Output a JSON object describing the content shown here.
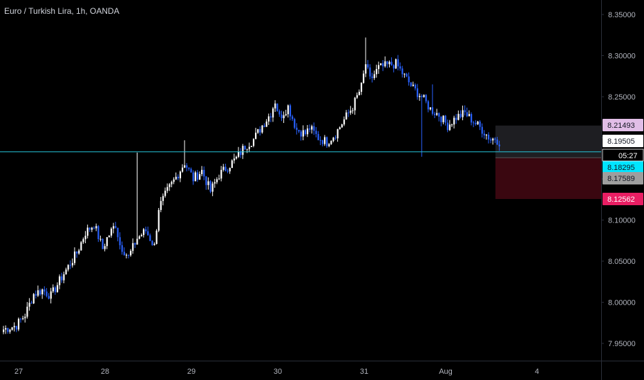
{
  "header": {
    "title": "Euro / Turkish Lira, 1h, OANDA"
  },
  "colors": {
    "background": "#000000",
    "up_candle": "#ffffff",
    "down_candle": "#2962ff",
    "price_line": "#26c6da",
    "stop_zone": "#3a0710",
    "target_zone": "#1e1e22",
    "axis_text": "#b2b5be",
    "border": "#2a2e39"
  },
  "chart_data": {
    "type": "candlestick",
    "title": "Euro / Turkish Lira, 1h, OANDA",
    "ylim": [
      7.93,
      8.365
    ],
    "y_ticks": [
      "8.35000",
      "8.30000",
      "8.25000",
      "8.20000",
      "8.15000",
      "8.10000",
      "8.05000",
      "8.00000",
      "7.95000"
    ],
    "x_ticks": [
      "27",
      "28",
      "29",
      "30",
      "31",
      "Aug",
      "4"
    ],
    "grid": false,
    "current_price": "8.19505",
    "countdown": "05:27",
    "horizontal_line": "8.18295",
    "price_labels": [
      {
        "value": "8.21493",
        "role": "target"
      },
      {
        "value": "8.19505",
        "role": "last"
      },
      {
        "value": "8.18295",
        "role": "line"
      },
      {
        "value": "8.17589",
        "role": "entry"
      },
      {
        "value": "8.12562",
        "role": "stop"
      }
    ],
    "position": {
      "target": 8.21493,
      "entry": 8.17589,
      "stop": 8.12562
    },
    "close_path": [
      [
        0,
        7.967
      ],
      [
        6,
        7.972
      ],
      [
        10,
        7.985
      ],
      [
        14,
        8.01
      ],
      [
        18,
        8.015
      ],
      [
        22,
        8.008
      ],
      [
        28,
        8.035
      ],
      [
        34,
        8.06
      ],
      [
        38,
        8.085
      ],
      [
        42,
        8.095
      ],
      [
        46,
        8.065
      ],
      [
        48,
        8.078
      ],
      [
        52,
        8.095
      ],
      [
        54,
        8.07
      ],
      [
        58,
        8.055
      ],
      [
        62,
        8.078
      ],
      [
        66,
        8.087
      ],
      [
        70,
        8.068
      ],
      [
        72,
        8.115
      ],
      [
        76,
        8.135
      ],
      [
        80,
        8.152
      ],
      [
        84,
        8.17
      ],
      [
        88,
        8.15
      ],
      [
        92,
        8.16
      ],
      [
        96,
        8.135
      ],
      [
        100,
        8.155
      ],
      [
        104,
        8.165
      ],
      [
        108,
        8.175
      ],
      [
        112,
        8.19
      ],
      [
        116,
        8.198
      ],
      [
        120,
        8.215
      ],
      [
        124,
        8.23
      ],
      [
        126,
        8.245
      ],
      [
        128,
        8.225
      ],
      [
        132,
        8.238
      ],
      [
        136,
        8.21
      ],
      [
        140,
        8.205
      ],
      [
        142,
        8.212
      ],
      [
        146,
        8.2
      ],
      [
        150,
        8.195
      ],
      [
        154,
        8.205
      ],
      [
        158,
        8.222
      ],
      [
        162,
        8.238
      ],
      [
        166,
        8.262
      ],
      [
        168,
        8.29
      ],
      [
        170,
        8.27
      ],
      [
        174,
        8.285
      ],
      [
        178,
        8.288
      ],
      [
        182,
        8.29
      ],
      [
        186,
        8.275
      ],
      [
        190,
        8.26
      ],
      [
        194,
        8.25
      ],
      [
        198,
        8.235
      ],
      [
        202,
        8.228
      ],
      [
        206,
        8.215
      ],
      [
        210,
        8.225
      ],
      [
        214,
        8.23
      ],
      [
        218,
        8.22
      ],
      [
        222,
        8.21
      ],
      [
        226,
        8.198
      ],
      [
        228,
        8.2
      ],
      [
        230,
        8.195
      ]
    ],
    "spikes": [
      {
        "hour": 62,
        "high": 8.182
      },
      {
        "hour": 84,
        "high": 8.197
      },
      {
        "hour": 168,
        "high": 8.322
      },
      {
        "hour": 194,
        "low": 8.177
      },
      {
        "hour": 199,
        "high": 8.265
      }
    ]
  }
}
